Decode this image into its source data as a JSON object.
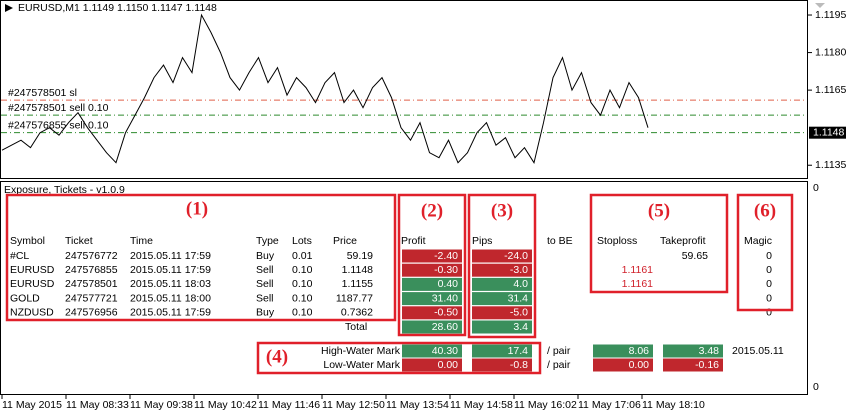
{
  "chart": {
    "header": "EURUSD,M1  1.1149 1.1150 1.1147 1.1148",
    "ylim": [
      1.11299,
      1.1201
    ],
    "yticks": [
      1.1195,
      {
        "value": 1.118,
        "label": "1.1180"
      },
      1.1165,
      1.1135
    ],
    "current_price": 1.1148,
    "line_color": "#000000",
    "values": [
      1.1141,
      1.1143,
      1.1145,
      1.1142,
      1.1148,
      1.115,
      1.1147,
      1.1152,
      1.1156,
      1.115,
      1.1145,
      1.114,
      1.1136,
      1.1148,
      1.1155,
      1.1162,
      1.117,
      1.1175,
      1.1168,
      1.1178,
      1.1172,
      1.1195,
      1.1188,
      1.118,
      1.117,
      1.1165,
      1.1172,
      1.1178,
      1.1168,
      1.1174,
      1.1163,
      1.117,
      1.1166,
      1.116,
      1.1168,
      1.1172,
      1.116,
      1.1165,
      1.1158,
      1.1166,
      1.117,
      1.1162,
      1.115,
      1.1145,
      1.1152,
      1.114,
      1.1138,
      1.1145,
      1.1136,
      1.114,
      1.1148,
      1.1152,
      1.1143,
      1.1146,
      1.1138,
      1.1142,
      1.1136,
      1.1152,
      1.117,
      1.1178,
      1.1165,
      1.1172,
      1.116,
      1.1155,
      1.1165,
      1.1158,
      1.1168,
      1.1162,
      1.115
    ],
    "order_lines": [
      {
        "label": "#247578501 sl",
        "price": 1.1161,
        "color": "#e0604a"
      },
      {
        "label": "#247578501 sell 0.10",
        "price": 1.1155,
        "color": "#2e8b2e"
      },
      {
        "label": "#247576855 sell 0.10",
        "price": 1.1148,
        "color": "#2e8b2e"
      }
    ],
    "time_labels": [
      "11 May 2015",
      "11 May 08:33",
      "11 May 09:38",
      "11 May 10:42",
      "11 May 11:46",
      "11 May 12:50",
      "11 May 13:54",
      "11 May 14:58",
      "11 May 16:02",
      "11 May 17:06",
      "11 May 18:10"
    ]
  },
  "panel": {
    "title": "Exposure, Tickets - v1.0.9",
    "axis_top": "0",
    "axis_bottom": "0",
    "columns": [
      "Symbol",
      "Ticket",
      "Time",
      "Type",
      "Lots",
      "Price",
      "Profit",
      "Pips",
      "to BE",
      "Stoploss",
      "Takeprofit",
      "Magic"
    ],
    "rows": [
      {
        "symbol": "#CL",
        "ticket": "247576772",
        "time": "2015.05.11 17:59",
        "type": "Buy",
        "lots": "0.01",
        "price": "59.19",
        "profit": "-2.40",
        "profit_color": "#c0272d",
        "pips": "-24.0",
        "pips_color": "#c0272d",
        "takeprofit": "59.65",
        "magic": "0"
      },
      {
        "symbol": "EURUSD",
        "ticket": "247576855",
        "time": "2015.05.11 17:59",
        "type": "Sell",
        "lots": "0.10",
        "price": "1.1148",
        "profit": "-0.30",
        "profit_color": "#c0272d",
        "pips": "-3.0",
        "pips_color": "#c0272d",
        "stoploss": "1.1161",
        "magic": "0"
      },
      {
        "symbol": "EURUSD",
        "ticket": "247578501",
        "time": "2015.05.11 18:03",
        "type": "Sell",
        "lots": "0.10",
        "price": "1.1155",
        "profit": "0.40",
        "profit_color": "#3a8f5c",
        "pips": "4.0",
        "pips_color": "#3a8f5c",
        "stoploss": "1.1161",
        "magic": "0"
      },
      {
        "symbol": "GOLD",
        "ticket": "247577721",
        "time": "2015.05.11 18:00",
        "type": "Sell",
        "lots": "0.10",
        "price": "1187.77",
        "profit": "31.40",
        "profit_color": "#3a8f5c",
        "pips": "31.4",
        "pips_color": "#3a8f5c",
        "magic": "0"
      },
      {
        "symbol": "NZDUSD",
        "ticket": "247576956",
        "time": "2015.05.11 17:59",
        "type": "Buy",
        "lots": "0.10",
        "price": "0.7362",
        "profit": "-0.50",
        "profit_color": "#c0272d",
        "pips": "-5.0",
        "pips_color": "#c0272d",
        "magic": "0"
      }
    ],
    "total": {
      "label": "Total",
      "profit": "28.60",
      "profit_color": "#3a8f5c",
      "pips": "3.4",
      "pips_color": "#3a8f5c"
    },
    "marks": [
      {
        "label": "High-Water Mark",
        "profit": "40.30",
        "profit_color": "#3a8f5c",
        "pips": "17.4",
        "pips_color": "#3a8f5c",
        "per": "/ pair",
        "pair_profit": "8.06",
        "pair_profit_color": "#3a8f5c",
        "pair_pips": "3.48",
        "pair_pips_color": "#3a8f5c",
        "date": "2015.05.11"
      },
      {
        "label": "Low-Water Mark",
        "profit": "0.00",
        "profit_color": "#c0272d",
        "pips": "-0.8",
        "pips_color": "#c0272d",
        "per": "/ pair",
        "pair_profit": "0.00",
        "pair_profit_color": "#c0272d",
        "pair_pips": "-0.16",
        "pair_pips_color": "#c0272d"
      }
    ],
    "annotations": [
      "(1)",
      "(2)",
      "(3)",
      "(4)",
      "(5)",
      "(6)"
    ]
  }
}
